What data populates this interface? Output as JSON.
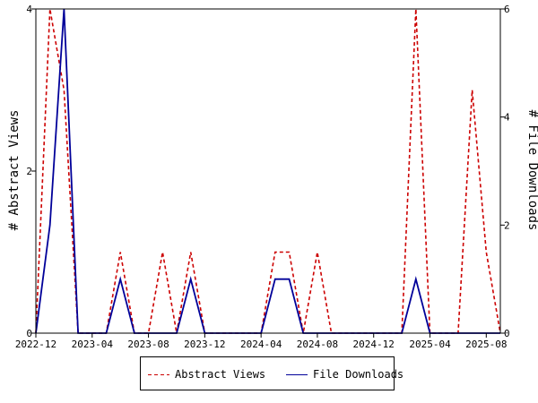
{
  "chart_data": {
    "type": "line",
    "x": [
      "2022-12",
      "2023-01",
      "2023-02",
      "2023-03",
      "2023-04",
      "2023-05",
      "2023-06",
      "2023-07",
      "2023-08",
      "2023-09",
      "2023-10",
      "2023-11",
      "2023-12",
      "2024-01",
      "2024-02",
      "2024-03",
      "2024-04",
      "2024-05",
      "2024-06",
      "2024-07",
      "2024-08",
      "2024-09",
      "2024-10",
      "2024-11",
      "2024-12",
      "2025-01",
      "2025-02",
      "2025-03",
      "2025-04",
      "2025-05",
      "2025-06",
      "2025-07",
      "2025-08",
      "2025-09"
    ],
    "series": [
      {
        "name": "Abstract Views",
        "axis": "left",
        "color": "#cc0000",
        "dash": true,
        "values": [
          0,
          4,
          3,
          0,
          0,
          0,
          1,
          0,
          0,
          1,
          0,
          1,
          0,
          0,
          0,
          0,
          0,
          1,
          1,
          0,
          1,
          0,
          0,
          0,
          0,
          0,
          0,
          4,
          0,
          0,
          0,
          3,
          1,
          0
        ]
      },
      {
        "name": "File Downloads",
        "axis": "right",
        "color": "#000099",
        "dash": false,
        "values": [
          0,
          2,
          6,
          0,
          0,
          0,
          1,
          0,
          0,
          0,
          0,
          1,
          0,
          0,
          0,
          0,
          0,
          1,
          1,
          0,
          0,
          0,
          0,
          0,
          0,
          0,
          0,
          1,
          0,
          0,
          0,
          0,
          0,
          0
        ]
      }
    ],
    "x_ticks": [
      "2022-12",
      "2023-04",
      "2023-08",
      "2023-12",
      "2024-04",
      "2024-08",
      "2024-12",
      "2025-04",
      "2025-08"
    ],
    "y_left": {
      "label": "# Abstract Views",
      "ticks": [
        0,
        2,
        4
      ],
      "range": [
        0,
        4
      ]
    },
    "y_right": {
      "label": "# File Downloads",
      "ticks": [
        0,
        2,
        4,
        6
      ],
      "range": [
        0,
        6
      ]
    },
    "legend": [
      "Abstract Views",
      "File Downloads"
    ],
    "grid": false,
    "legend_position": "bottom"
  }
}
